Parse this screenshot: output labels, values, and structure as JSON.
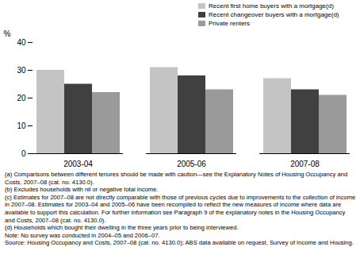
{
  "chart_data": {
    "type": "bar",
    "y_label": "%",
    "categories": [
      "2003-04",
      "2005-06",
      "2007-08"
    ],
    "series": [
      {
        "name": "Recent first home buyers with a mortgage(d)",
        "color": "#c4c4c4",
        "values": [
          30,
          31,
          27
        ]
      },
      {
        "name": "Recent changeover buyers with a mortgage(d)",
        "color": "#404040",
        "values": [
          25,
          28,
          23
        ]
      },
      {
        "name": "Private renters",
        "color": "#9a9a9a",
        "values": [
          22,
          23,
          21
        ]
      }
    ],
    "ylim": [
      0,
      40
    ],
    "yticks": [
      0,
      10,
      20,
      30,
      40
    ],
    "grid": false,
    "legend": "top right",
    "annotations": [
      "(a) Comparisons between different tenures should be made with caution—see the Explanatory Notes of Housing Occupancy and Costs, 2007–08 (cat. no. 4130.0).",
      "(b) Excludes households with nil or negative total income.",
      "(c) Estimates for 2007–08 are not directly comparable with those of previous cycles due to improvements to the collection of income in 2007–08. Estimates for 2003–04 and 2005–06 have been recompiled to reflect the new measures of income where data are available to support this calculation. For further information see Paragraph 9 of the explanatory notes in the Housing Occupancy and Costs, 2007–08 (cat. no. 4130.0).",
      "(d) Households which bought their dwelling in the three years prior to being interviewed.",
      "Note: No survey was conducted in 2004–05 and 2006–07.",
      "Source: Housing Occupancy and Costs, 2007–08 (cat. no. 4130.0); ABS data available on request, Survey of Income and Housing."
    ]
  }
}
